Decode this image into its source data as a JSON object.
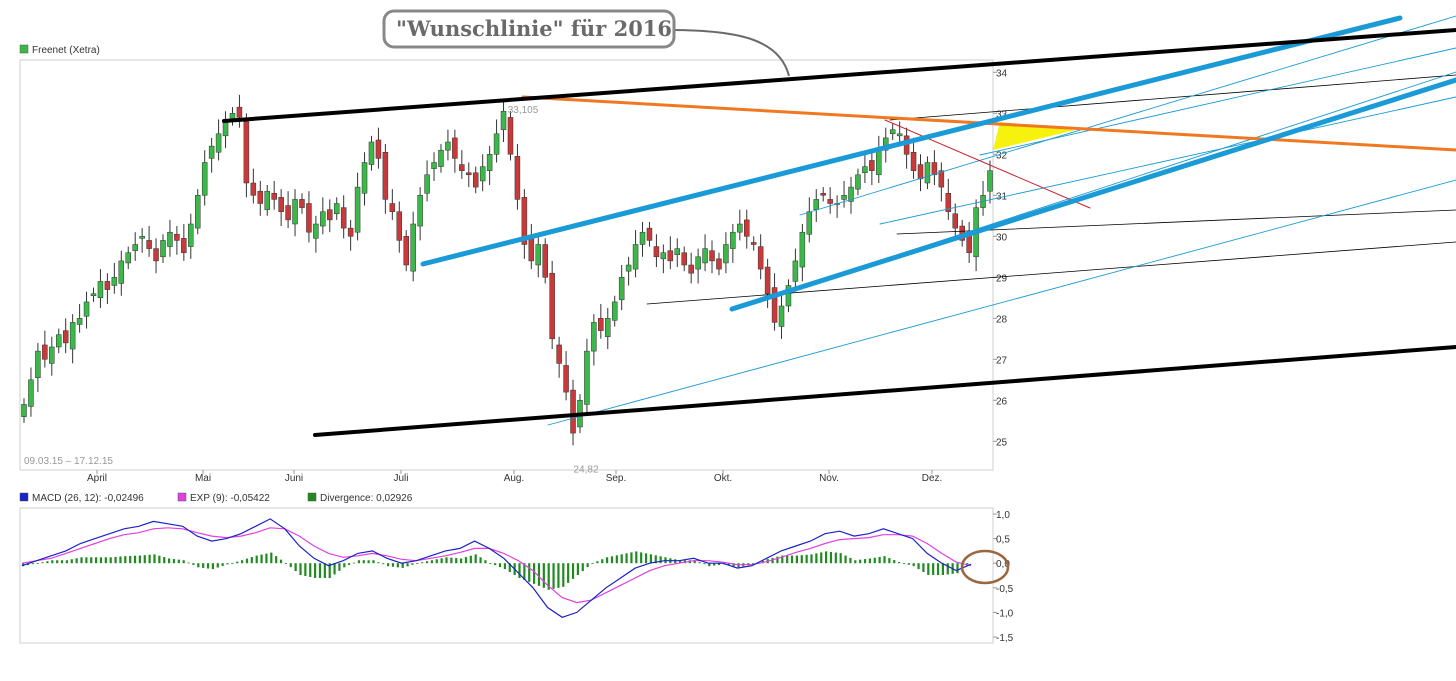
{
  "callout_text": "\"Wunschlinie\" für 2016",
  "price_chart": {
    "legend": "Freenet (Xetra)",
    "legend_color": "#3cb84a",
    "date_range": "09.03.15 – 17.12.15",
    "high_label": "33,105",
    "low_label": "24,82",
    "y_ticks": [
      "34",
      "33",
      "32",
      "31",
      "30",
      "29",
      "28",
      "27",
      "26",
      "25"
    ],
    "x_ticks": [
      "April",
      "Mai",
      "Juni",
      "Juli",
      "Aug.",
      "Sep.",
      "Okt.",
      "Nov.",
      "Dez."
    ]
  },
  "macd_chart": {
    "legend": [
      {
        "label": "MACD (26, 12): -0,02496",
        "color": "#1a22c8"
      },
      {
        "label": "EXP (9): -0,05422",
        "color": "#e040e0"
      },
      {
        "label": "Divergence: 0,02926",
        "color": "#1f8a1f"
      }
    ],
    "y_ticks": [
      "1,0",
      "0,5",
      "0,0",
      "-0,5",
      "-1,0",
      "-1,5"
    ]
  },
  "chart_data": [
    {
      "type": "candlestick",
      "title": "Freenet (Xetra)",
      "period": "09.03.15 – 17.12.15",
      "y_range": [
        24.3,
        34.3
      ],
      "annotations": {
        "high": 33.105,
        "low": 24.82
      },
      "close": [
        25.9,
        26.5,
        27.2,
        27.0,
        27.3,
        27.6,
        27.4,
        27.9,
        28.0,
        28.4,
        28.6,
        28.9,
        28.7,
        29.0,
        29.4,
        29.6,
        29.8,
        30.0,
        29.7,
        29.4,
        29.9,
        30.1,
        29.9,
        29.6,
        30.3,
        31.0,
        31.8,
        32.2,
        32.5,
        32.8,
        33.0,
        32.9,
        31.3,
        31.0,
        30.8,
        31.1,
        30.9,
        30.6,
        30.4,
        30.9,
        30.7,
        30.1,
        30.3,
        30.6,
        30.4,
        30.8,
        30.2,
        30.0,
        31.2,
        31.8,
        32.3,
        31.9,
        30.9,
        30.6,
        29.9,
        29.3,
        30.3,
        31.0,
        31.5,
        31.8,
        32.1,
        32.3,
        31.9,
        31.6,
        31.5,
        31.2,
        31.7,
        32.0,
        32.5,
        33.05,
        32.0,
        30.9,
        29.8,
        29.4,
        29.8,
        29.0,
        27.5,
        26.9,
        26.2,
        25.2,
        26.0,
        27.2,
        27.9,
        27.7,
        28.0,
        28.4,
        29.0,
        29.3,
        29.8,
        30.1,
        29.9,
        29.5,
        29.6,
        29.4,
        29.7,
        29.3,
        29.1,
        29.5,
        29.7,
        29.4,
        29.2,
        29.8,
        30.1,
        30.3,
        30.0,
        29.8,
        29.2,
        28.6,
        27.9,
        28.3,
        28.8,
        29.4,
        30.1,
        30.6,
        30.9,
        31.0,
        30.8,
        30.8,
        31.0,
        31.2,
        31.5,
        31.7,
        31.6,
        32.1,
        32.4,
        32.6,
        32.5,
        32.0,
        31.6,
        31.4,
        31.8,
        31.5,
        31.2,
        30.6,
        30.2,
        29.9,
        29.6,
        30.7,
        31.0,
        31.6
      ]
    },
    {
      "type": "line",
      "title": "MACD",
      "y_range": [
        -1.5,
        1.0
      ],
      "series": [
        {
          "name": "MACD (26, 12)",
          "values": [
            -0.05,
            0.05,
            0.15,
            0.25,
            0.4,
            0.5,
            0.6,
            0.7,
            0.75,
            0.85,
            0.8,
            0.75,
            0.55,
            0.45,
            0.5,
            0.6,
            0.75,
            0.9,
            0.7,
            0.35,
            0.1,
            -0.05,
            0.05,
            0.2,
            0.25,
            0.1,
            0.0,
            0.05,
            0.15,
            0.25,
            0.3,
            0.45,
            0.3,
            0.1,
            -0.2,
            -0.5,
            -0.9,
            -1.1,
            -1.0,
            -0.75,
            -0.5,
            -0.3,
            -0.1,
            0.0,
            0.05,
            0.05,
            0.1,
            0.0,
            0.0,
            -0.1,
            -0.05,
            0.1,
            0.25,
            0.35,
            0.45,
            0.6,
            0.65,
            0.55,
            0.6,
            0.7,
            0.6,
            0.5,
            0.2,
            0.0,
            -0.15,
            -0.02
          ]
        },
        {
          "name": "EXP (9)",
          "values": [
            0.0,
            0.05,
            0.1,
            0.2,
            0.3,
            0.4,
            0.5,
            0.58,
            0.62,
            0.7,
            0.72,
            0.7,
            0.62,
            0.55,
            0.52,
            0.55,
            0.62,
            0.72,
            0.7,
            0.55,
            0.35,
            0.2,
            0.12,
            0.15,
            0.2,
            0.15,
            0.08,
            0.05,
            0.1,
            0.15,
            0.22,
            0.3,
            0.3,
            0.2,
            0.05,
            -0.15,
            -0.45,
            -0.7,
            -0.8,
            -0.75,
            -0.6,
            -0.45,
            -0.3,
            -0.15,
            -0.05,
            0.0,
            0.05,
            0.05,
            0.02,
            -0.03,
            -0.03,
            0.03,
            0.12,
            0.22,
            0.3,
            0.4,
            0.48,
            0.5,
            0.52,
            0.58,
            0.58,
            0.55,
            0.4,
            0.2,
            0.02,
            -0.05
          ]
        }
      ]
    }
  ]
}
